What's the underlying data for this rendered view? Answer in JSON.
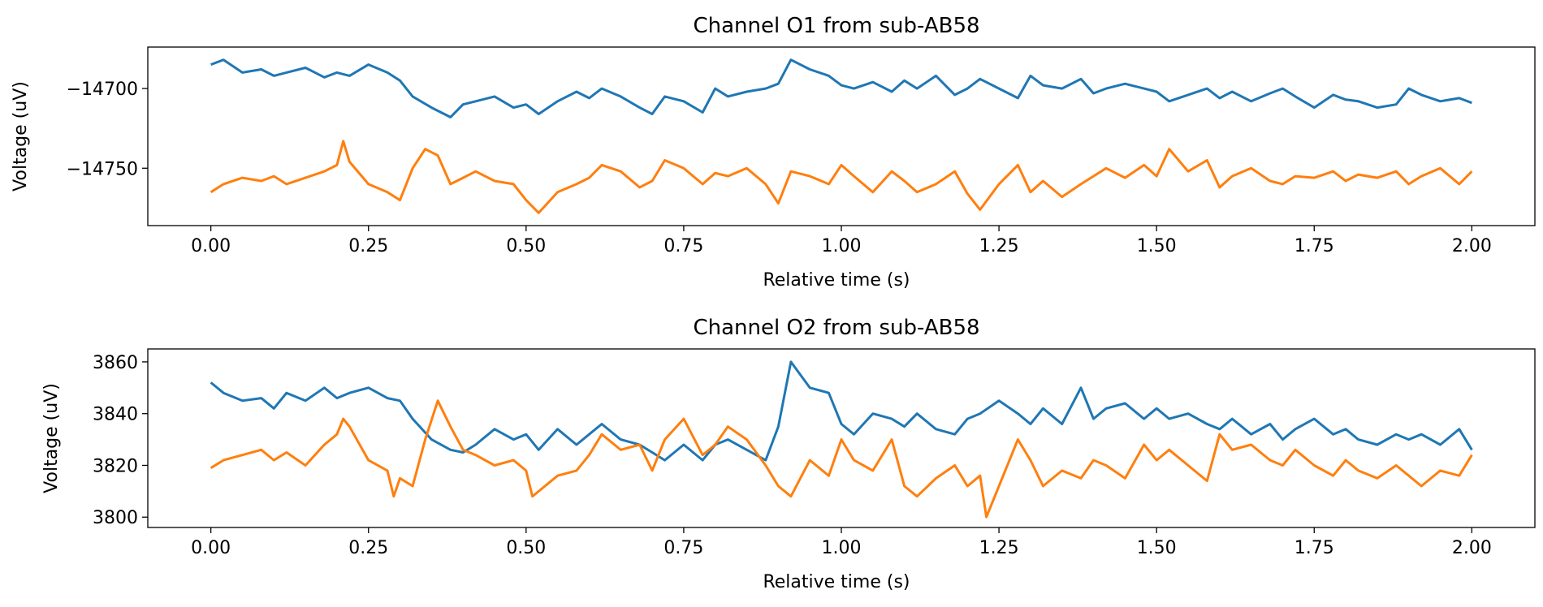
{
  "chart_data": [
    {
      "type": "line",
      "title": "Channel O1 from sub-AB58",
      "xlabel": "Relative time (s)",
      "ylabel": "Voltage (uV)",
      "xlim": [
        -0.1,
        2.1
      ],
      "ylim": [
        -14786,
        -14674
      ],
      "xticks": [
        0.0,
        0.25,
        0.5,
        0.75,
        1.0,
        1.25,
        1.5,
        1.75,
        2.0
      ],
      "xtick_labels": [
        "0.00",
        "0.25",
        "0.50",
        "0.75",
        "1.00",
        "1.25",
        "1.50",
        "1.75",
        "2.00"
      ],
      "yticks": [
        -14700,
        -14750
      ],
      "ytick_labels": [
        "−14700",
        "−14750"
      ],
      "grid": false,
      "colors": [
        "#1f77b4",
        "#ff7f0e"
      ],
      "series": [
        {
          "x": [
            0.0,
            0.02,
            0.05,
            0.08,
            0.1,
            0.12,
            0.15,
            0.18,
            0.2,
            0.22,
            0.25,
            0.28,
            0.3,
            0.32,
            0.35,
            0.38,
            0.4,
            0.42,
            0.45,
            0.48,
            0.5,
            0.52,
            0.55,
            0.58,
            0.6,
            0.62,
            0.65,
            0.68,
            0.7,
            0.72,
            0.75,
            0.78,
            0.8,
            0.82,
            0.85,
            0.88,
            0.9,
            0.92,
            0.95,
            0.98,
            1.0,
            1.02,
            1.05,
            1.08,
            1.1,
            1.12,
            1.15,
            1.18,
            1.2,
            1.22,
            1.25,
            1.28,
            1.3,
            1.32,
            1.35,
            1.38,
            1.4,
            1.42,
            1.45,
            1.48,
            1.5,
            1.52,
            1.55,
            1.58,
            1.6,
            1.62,
            1.65,
            1.68,
            1.7,
            1.72,
            1.75,
            1.78,
            1.8,
            1.82,
            1.85,
            1.88,
            1.9,
            1.92,
            1.95,
            1.98,
            2.0
          ],
          "values": [
            -14685,
            -14682,
            -14690,
            -14688,
            -14692,
            -14690,
            -14687,
            -14693,
            -14690,
            -14692,
            -14685,
            -14690,
            -14695,
            -14705,
            -14712,
            -14718,
            -14710,
            -14708,
            -14705,
            -14712,
            -14710,
            -14716,
            -14708,
            -14702,
            -14706,
            -14700,
            -14705,
            -14712,
            -14716,
            -14705,
            -14708,
            -14715,
            -14700,
            -14705,
            -14702,
            -14700,
            -14697,
            -14682,
            -14688,
            -14692,
            -14698,
            -14700,
            -14696,
            -14702,
            -14695,
            -14700,
            -14692,
            -14704,
            -14700,
            -14694,
            -14700,
            -14706,
            -14692,
            -14698,
            -14700,
            -14694,
            -14703,
            -14700,
            -14697,
            -14700,
            -14702,
            -14708,
            -14704,
            -14700,
            -14706,
            -14702,
            -14708,
            -14703,
            -14700,
            -14705,
            -14712,
            -14704,
            -14707,
            -14708,
            -14712,
            -14710,
            -14700,
            -14704,
            -14708,
            -14706,
            -14709
          ]
        },
        {
          "x": [
            0.0,
            0.02,
            0.05,
            0.08,
            0.1,
            0.12,
            0.15,
            0.18,
            0.2,
            0.21,
            0.22,
            0.25,
            0.28,
            0.3,
            0.32,
            0.34,
            0.36,
            0.38,
            0.4,
            0.42,
            0.45,
            0.48,
            0.5,
            0.52,
            0.55,
            0.58,
            0.6,
            0.62,
            0.65,
            0.68,
            0.7,
            0.72,
            0.75,
            0.78,
            0.8,
            0.82,
            0.85,
            0.88,
            0.9,
            0.92,
            0.95,
            0.98,
            1.0,
            1.02,
            1.05,
            1.08,
            1.1,
            1.12,
            1.15,
            1.18,
            1.2,
            1.22,
            1.25,
            1.28,
            1.3,
            1.32,
            1.35,
            1.38,
            1.4,
            1.42,
            1.45,
            1.48,
            1.5,
            1.52,
            1.55,
            1.58,
            1.6,
            1.62,
            1.65,
            1.68,
            1.7,
            1.72,
            1.75,
            1.78,
            1.8,
            1.82,
            1.85,
            1.88,
            1.9,
            1.92,
            1.95,
            1.98,
            2.0
          ],
          "values": [
            -14765,
            -14760,
            -14756,
            -14758,
            -14755,
            -14760,
            -14756,
            -14752,
            -14748,
            -14733,
            -14746,
            -14760,
            -14765,
            -14770,
            -14750,
            -14738,
            -14742,
            -14760,
            -14756,
            -14752,
            -14758,
            -14760,
            -14770,
            -14778,
            -14765,
            -14760,
            -14756,
            -14748,
            -14752,
            -14762,
            -14758,
            -14745,
            -14750,
            -14760,
            -14753,
            -14755,
            -14750,
            -14760,
            -14772,
            -14752,
            -14755,
            -14760,
            -14748,
            -14755,
            -14765,
            -14752,
            -14758,
            -14765,
            -14760,
            -14752,
            -14766,
            -14776,
            -14760,
            -14748,
            -14765,
            -14758,
            -14768,
            -14760,
            -14755,
            -14750,
            -14756,
            -14748,
            -14755,
            -14738,
            -14752,
            -14745,
            -14762,
            -14755,
            -14750,
            -14758,
            -14760,
            -14755,
            -14756,
            -14752,
            -14758,
            -14754,
            -14756,
            -14752,
            -14760,
            -14755,
            -14750,
            -14760,
            -14752
          ]
        }
      ]
    },
    {
      "type": "line",
      "title": "Channel O2 from sub-AB58",
      "xlabel": "Relative time (s)",
      "ylabel": "Voltage (uV)",
      "xlim": [
        -0.1,
        2.1
      ],
      "ylim": [
        3796,
        3865
      ],
      "xticks": [
        0.0,
        0.25,
        0.5,
        0.75,
        1.0,
        1.25,
        1.5,
        1.75,
        2.0
      ],
      "xtick_labels": [
        "0.00",
        "0.25",
        "0.50",
        "0.75",
        "1.00",
        "1.25",
        "1.50",
        "1.75",
        "2.00"
      ],
      "yticks": [
        3800,
        3820,
        3840,
        3860
      ],
      "ytick_labels": [
        "3800",
        "3820",
        "3840",
        "3860"
      ],
      "grid": false,
      "colors": [
        "#1f77b4",
        "#ff7f0e"
      ],
      "series": [
        {
          "x": [
            0.0,
            0.02,
            0.05,
            0.08,
            0.1,
            0.12,
            0.15,
            0.18,
            0.2,
            0.22,
            0.25,
            0.28,
            0.3,
            0.32,
            0.35,
            0.38,
            0.4,
            0.42,
            0.45,
            0.48,
            0.5,
            0.52,
            0.55,
            0.58,
            0.6,
            0.62,
            0.65,
            0.68,
            0.7,
            0.72,
            0.75,
            0.78,
            0.8,
            0.82,
            0.85,
            0.88,
            0.9,
            0.92,
            0.95,
            0.98,
            1.0,
            1.02,
            1.05,
            1.08,
            1.1,
            1.12,
            1.15,
            1.18,
            1.2,
            1.22,
            1.25,
            1.28,
            1.3,
            1.32,
            1.35,
            1.38,
            1.4,
            1.42,
            1.45,
            1.48,
            1.5,
            1.52,
            1.55,
            1.58,
            1.6,
            1.62,
            1.65,
            1.68,
            1.7,
            1.72,
            1.75,
            1.78,
            1.8,
            1.82,
            1.85,
            1.88,
            1.9,
            1.92,
            1.95,
            1.98,
            2.0
          ],
          "values": [
            3852,
            3848,
            3845,
            3846,
            3842,
            3848,
            3845,
            3850,
            3846,
            3848,
            3850,
            3846,
            3845,
            3838,
            3830,
            3826,
            3825,
            3828,
            3834,
            3830,
            3832,
            3826,
            3834,
            3828,
            3832,
            3836,
            3830,
            3828,
            3825,
            3822,
            3828,
            3822,
            3828,
            3830,
            3826,
            3822,
            3835,
            3860,
            3850,
            3848,
            3836,
            3832,
            3840,
            3838,
            3835,
            3840,
            3834,
            3832,
            3838,
            3840,
            3845,
            3840,
            3836,
            3842,
            3836,
            3850,
            3838,
            3842,
            3844,
            3838,
            3842,
            3838,
            3840,
            3836,
            3834,
            3838,
            3832,
            3836,
            3830,
            3834,
            3838,
            3832,
            3834,
            3830,
            3828,
            3832,
            3830,
            3832,
            3828,
            3834,
            3826
          ]
        },
        {
          "x": [
            0.0,
            0.02,
            0.05,
            0.08,
            0.1,
            0.12,
            0.15,
            0.18,
            0.2,
            0.21,
            0.22,
            0.25,
            0.28,
            0.29,
            0.3,
            0.32,
            0.34,
            0.36,
            0.38,
            0.4,
            0.42,
            0.45,
            0.48,
            0.5,
            0.51,
            0.52,
            0.55,
            0.58,
            0.6,
            0.62,
            0.65,
            0.68,
            0.7,
            0.72,
            0.75,
            0.78,
            0.8,
            0.82,
            0.85,
            0.88,
            0.9,
            0.92,
            0.95,
            0.98,
            1.0,
            1.02,
            1.05,
            1.08,
            1.1,
            1.12,
            1.15,
            1.18,
            1.2,
            1.22,
            1.23,
            1.25,
            1.28,
            1.3,
            1.32,
            1.35,
            1.38,
            1.4,
            1.42,
            1.45,
            1.48,
            1.5,
            1.52,
            1.55,
            1.58,
            1.6,
            1.62,
            1.65,
            1.68,
            1.7,
            1.72,
            1.75,
            1.78,
            1.8,
            1.82,
            1.85,
            1.88,
            1.9,
            1.92,
            1.95,
            1.98,
            2.0
          ],
          "values": [
            3819,
            3822,
            3824,
            3826,
            3822,
            3825,
            3820,
            3828,
            3832,
            3838,
            3835,
            3822,
            3818,
            3808,
            3815,
            3812,
            3830,
            3845,
            3835,
            3826,
            3824,
            3820,
            3822,
            3818,
            3808,
            3810,
            3816,
            3818,
            3824,
            3832,
            3826,
            3828,
            3818,
            3830,
            3838,
            3824,
            3828,
            3835,
            3830,
            3820,
            3812,
            3808,
            3822,
            3816,
            3830,
            3822,
            3818,
            3830,
            3812,
            3808,
            3815,
            3820,
            3812,
            3816,
            3800,
            3812,
            3830,
            3822,
            3812,
            3818,
            3815,
            3822,
            3820,
            3815,
            3828,
            3822,
            3826,
            3820,
            3814,
            3832,
            3826,
            3828,
            3822,
            3820,
            3826,
            3820,
            3816,
            3822,
            3818,
            3815,
            3820,
            3816,
            3812,
            3818,
            3816,
            3824
          ]
        }
      ]
    }
  ]
}
